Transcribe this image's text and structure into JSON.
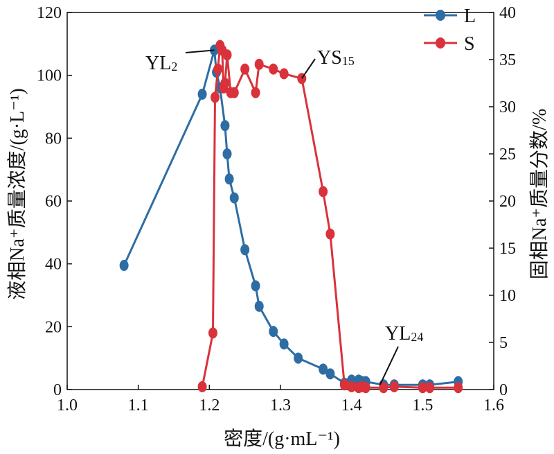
{
  "chart_data": {
    "type": "line",
    "xlabel": "密度/(g·mL⁻¹)",
    "ylabel_left": "液相Na⁺质量浓度/(g·L⁻¹)",
    "ylabel_right": "固相Na⁺质量分数/%",
    "xlim": [
      1.0,
      1.6
    ],
    "ylim_left": [
      0,
      120
    ],
    "ylim_right": [
      0,
      40
    ],
    "x_ticks": [
      "1.0",
      "1.1",
      "1.2",
      "1.3",
      "1.4",
      "1.5",
      "1.6"
    ],
    "y_left_ticks": [
      "0",
      "20",
      "40",
      "60",
      "80",
      "100",
      "120"
    ],
    "y_right_ticks": [
      "0",
      "5",
      "10",
      "15",
      "20",
      "25",
      "30",
      "35",
      "40"
    ],
    "legend_position": "top-right",
    "series": [
      {
        "name": "L",
        "axis": "left",
        "color": "#2e6da4",
        "points": [
          [
            1.08,
            39.5
          ],
          [
            1.19,
            94
          ],
          [
            1.207,
            108
          ],
          [
            1.21,
            101
          ],
          [
            1.215,
            96
          ],
          [
            1.222,
            84
          ],
          [
            1.225,
            75
          ],
          [
            1.228,
            67
          ],
          [
            1.235,
            61
          ],
          [
            1.25,
            44.5
          ],
          [
            1.265,
            33
          ],
          [
            1.27,
            26.5
          ],
          [
            1.29,
            18.5
          ],
          [
            1.305,
            14.5
          ],
          [
            1.325,
            10
          ],
          [
            1.36,
            6.5
          ],
          [
            1.37,
            5
          ],
          [
            1.39,
            2
          ],
          [
            1.4,
            3
          ],
          [
            1.405,
            2
          ],
          [
            1.41,
            3
          ],
          [
            1.415,
            2.5
          ],
          [
            1.42,
            2.5
          ],
          [
            1.445,
            1.5
          ],
          [
            1.46,
            1.5
          ],
          [
            1.5,
            1.5
          ],
          [
            1.51,
            1.5
          ],
          [
            1.55,
            2.5
          ]
        ]
      },
      {
        "name": "S",
        "axis": "right",
        "color": "#d9323b",
        "points": [
          [
            1.19,
            0.3
          ],
          [
            1.205,
            6
          ],
          [
            1.208,
            31
          ],
          [
            1.212,
            34
          ],
          [
            1.215,
            36.5
          ],
          [
            1.218,
            36
          ],
          [
            1.22,
            32
          ],
          [
            1.222,
            32.5
          ],
          [
            1.225,
            35.5
          ],
          [
            1.23,
            31.5
          ],
          [
            1.235,
            31.5
          ],
          [
            1.25,
            34
          ],
          [
            1.265,
            31.5
          ],
          [
            1.27,
            34.5
          ],
          [
            1.29,
            34
          ],
          [
            1.305,
            33.5
          ],
          [
            1.33,
            33
          ],
          [
            1.36,
            21
          ],
          [
            1.37,
            16.5
          ],
          [
            1.39,
            0.5
          ],
          [
            1.4,
            0.3
          ],
          [
            1.41,
            0.2
          ],
          [
            1.415,
            0.3
          ],
          [
            1.42,
            0.2
          ],
          [
            1.445,
            0.2
          ],
          [
            1.46,
            0.3
          ],
          [
            1.5,
            0.2
          ],
          [
            1.51,
            0.2
          ],
          [
            1.55,
            0.2
          ]
        ]
      }
    ],
    "annotations": [
      {
        "text_main": "YL",
        "text_sub": "2",
        "point": [
          1.207,
          108
        ],
        "axis": "left"
      },
      {
        "text_main": "YS",
        "text_sub": "15",
        "point": [
          1.33,
          33
        ],
        "axis": "right"
      },
      {
        "text_main": "YL",
        "text_sub": "24",
        "point": [
          1.44,
          1.5
        ],
        "axis": "left"
      }
    ]
  }
}
